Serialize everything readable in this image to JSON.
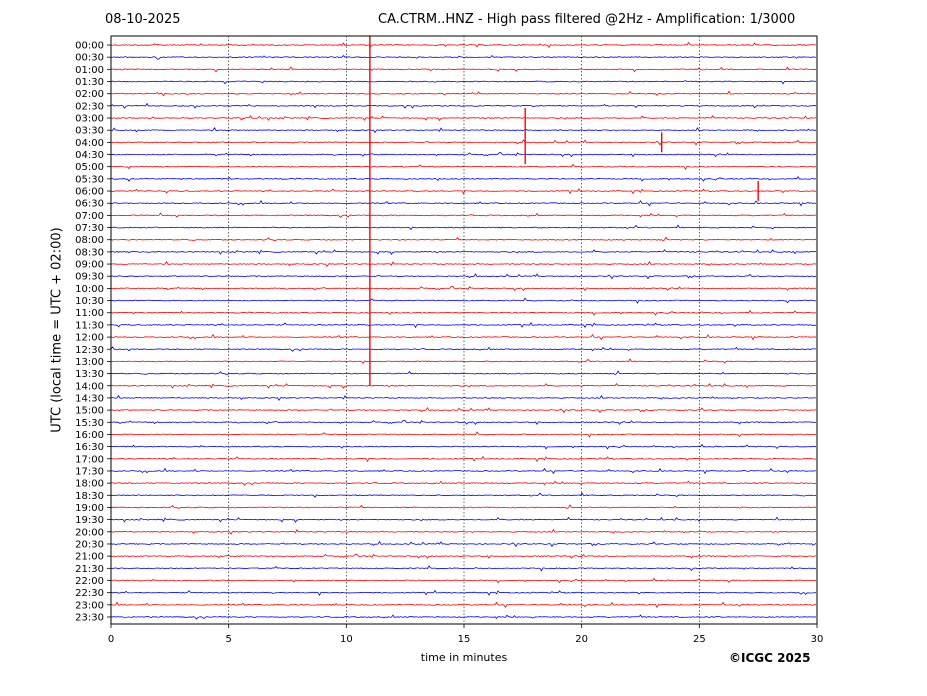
{
  "date": "08-10-2025",
  "chart_data": {
    "type": "line",
    "title": "CA.CTRM..HNZ - High pass filtered @2Hz - Amplification: 1/3000",
    "xlabel": "time in minutes",
    "ylabel": "UTC (local time = UTC + 02:00)",
    "xlim": [
      0,
      30
    ],
    "x_ticks": [
      0,
      5,
      10,
      15,
      20,
      25,
      30
    ],
    "rows": [
      "00:00",
      "00:30",
      "01:00",
      "01:30",
      "02:00",
      "02:30",
      "03:00",
      "03:30",
      "04:00",
      "04:30",
      "05:00",
      "05:30",
      "06:00",
      "06:30",
      "07:00",
      "07:30",
      "08:00",
      "08:30",
      "09:00",
      "09:30",
      "10:00",
      "10:30",
      "11:00",
      "11:30",
      "12:00",
      "12:30",
      "13:00",
      "13:30",
      "14:00",
      "14:30",
      "15:00",
      "15:30",
      "16:00",
      "16:30",
      "17:00",
      "17:30",
      "18:00",
      "18:30",
      "19:00",
      "19:30",
      "20:00",
      "20:30",
      "21:00",
      "21:30",
      "22:00",
      "22:30",
      "23:00",
      "23:30"
    ],
    "trace_colors": [
      "#ff0000",
      "#0000ff"
    ],
    "grid": "vertical dotted at 5-minute ticks",
    "events": [
      {
        "row": "00:00",
        "minute": 11.0,
        "note": "large spike spanning many traces"
      },
      {
        "row": "03:00",
        "minute": 17.6,
        "note": "spike"
      },
      {
        "row": "04:00",
        "minute": 23.4,
        "note": "spike"
      },
      {
        "row": "06:00",
        "minute": 27.5,
        "note": "burst"
      }
    ]
  },
  "copyright": "©ICGC 2025"
}
